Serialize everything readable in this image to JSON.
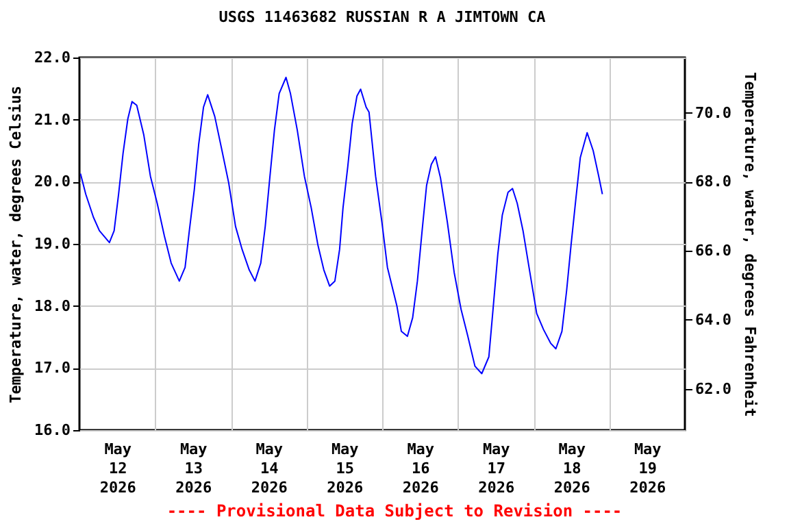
{
  "chart_data": {
    "type": "line",
    "title": "USGS 11463682 RUSSIAN R A JIMTOWN CA",
    "ylabel": "Temperature, water, degrees Celsius",
    "y2label": "Temperature, water, degrees Fahrenheit",
    "annotations": [
      "---- Provisional Data Subject to Revision ----"
    ],
    "x": [
      "2026-05-12T00:20",
      "2026-05-12T02:00",
      "2026-05-12T04:25",
      "2026-05-12T06:20",
      "2026-05-12T09:30",
      "2026-05-12T11:00",
      "2026-05-12T12:25",
      "2026-05-12T13:50",
      "2026-05-12T15:20",
      "2026-05-12T16:40",
      "2026-05-12T18:10",
      "2026-05-12T20:25",
      "2026-05-12T22:30",
      "2026-05-13T00:40",
      "2026-05-13T02:55",
      "2026-05-13T05:05",
      "2026-05-13T07:40",
      "2026-05-13T09:30",
      "2026-05-13T10:55",
      "2026-05-13T12:25",
      "2026-05-13T13:50",
      "2026-05-13T15:20",
      "2026-05-13T16:40",
      "2026-05-13T18:55",
      "2026-05-13T21:05",
      "2026-05-13T23:20",
      "2026-05-14T01:30",
      "2026-05-14T03:35",
      "2026-05-14T05:50",
      "2026-05-14T07:40",
      "2026-05-14T09:30",
      "2026-05-14T10:55",
      "2026-05-14T12:25",
      "2026-05-14T13:50",
      "2026-05-14T15:20",
      "2026-05-14T17:30",
      "2026-05-14T18:55",
      "2026-05-14T21:05",
      "2026-05-14T23:20",
      "2026-05-15T01:30",
      "2026-05-15T03:35",
      "2026-05-15T05:30",
      "2026-05-15T07:20",
      "2026-05-15T09:00",
      "2026-05-15T10:30",
      "2026-05-15T11:35",
      "2026-05-15T13:05",
      "2026-05-15T14:30",
      "2026-05-15T16:00",
      "2026-05-15T17:10",
      "2026-05-15T18:55",
      "2026-05-15T19:50",
      "2026-05-15T21:55",
      "2026-05-15T23:55",
      "2026-05-16T01:40",
      "2026-05-16T04:40",
      "2026-05-16T06:05",
      "2026-05-16T08:00",
      "2026-05-16T09:40",
      "2026-05-16T11:10",
      "2026-05-16T12:40",
      "2026-05-16T14:05",
      "2026-05-16T15:35",
      "2026-05-16T16:55",
      "2026-05-16T18:30",
      "2026-05-16T20:40",
      "2026-05-16T22:50",
      "2026-05-17T01:00",
      "2026-05-17T03:10",
      "2026-05-17T05:25",
      "2026-05-17T07:35",
      "2026-05-17T09:50",
      "2026-05-17T11:10",
      "2026-05-17T12:40",
      "2026-05-17T14:05",
      "2026-05-17T15:55",
      "2026-05-17T17:20",
      "2026-05-17T18:50",
      "2026-05-17T20:40",
      "2026-05-17T22:50",
      "2026-05-18T01:00",
      "2026-05-18T03:10",
      "2026-05-18T05:25",
      "2026-05-18T07:05",
      "2026-05-18T09:00",
      "2026-05-18T10:30",
      "2026-05-18T11:55",
      "2026-05-18T13:25",
      "2026-05-18T14:50",
      "2026-05-18T17:00",
      "2026-05-18T18:55",
      "2026-05-18T20:40",
      "2026-05-18T21:50"
    ],
    "series": [
      {
        "color": "#0000ff",
        "values": [
          20.13,
          19.8,
          19.43,
          19.21,
          19.02,
          19.21,
          19.8,
          20.46,
          21.01,
          21.29,
          21.23,
          20.75,
          20.09,
          19.65,
          19.13,
          18.69,
          18.4,
          18.62,
          19.24,
          19.87,
          20.61,
          21.2,
          21.4,
          21.05,
          20.53,
          19.98,
          19.28,
          18.91,
          18.58,
          18.4,
          18.69,
          19.28,
          20.09,
          20.83,
          21.42,
          21.68,
          21.42,
          20.83,
          20.09,
          19.58,
          18.99,
          18.58,
          18.32,
          18.4,
          18.91,
          19.58,
          20.24,
          20.94,
          21.38,
          21.49,
          21.2,
          21.12,
          20.09,
          19.35,
          18.62,
          18.0,
          17.59,
          17.51,
          17.81,
          18.4,
          19.21,
          19.94,
          20.28,
          20.4,
          20.06,
          19.35,
          18.54,
          17.95,
          17.51,
          17.03,
          16.91,
          17.18,
          17.95,
          18.83,
          19.46,
          19.83,
          19.89,
          19.65,
          19.21,
          18.54,
          17.88,
          17.62,
          17.4,
          17.31,
          17.59,
          18.25,
          18.99,
          19.72,
          20.39,
          20.79,
          20.5,
          20.09,
          19.8
        ]
      }
    ],
    "xlim": [
      "2026-05-12",
      "2026-05-20"
    ],
    "xticks": [
      {
        "value": "2026-05-12T12:00",
        "label": "May\n12\n2026"
      },
      {
        "value": "2026-05-13",
        "label": null
      },
      {
        "value": "2026-05-13T12:00",
        "label": "May\n13\n2026"
      },
      {
        "value": "2026-05-14",
        "label": null
      },
      {
        "value": "2026-05-14T12:00",
        "label": "May\n14\n2026"
      },
      {
        "value": "2026-05-15",
        "label": null
      },
      {
        "value": "2026-05-15T12:00",
        "label": "May\n15\n2026"
      },
      {
        "value": "2026-05-16",
        "label": null
      },
      {
        "value": "2026-05-16T12:00",
        "label": "May\n16\n2026"
      },
      {
        "value": "2026-05-17",
        "label": null
      },
      {
        "value": "2026-05-17T12:00",
        "label": "May\n17\n2026"
      },
      {
        "value": "2026-05-18",
        "label": null
      },
      {
        "value": "2026-05-18T12:00",
        "label": "May\n18\n2026"
      },
      {
        "value": "2026-05-19",
        "label": null
      },
      {
        "value": "2026-05-19T12:00",
        "label": "May\n19\n2026"
      }
    ],
    "ylim": [
      16,
      22
    ],
    "yticks": [
      {
        "value": 16,
        "label": "16.0"
      },
      {
        "value": 17,
        "label": "17.0"
      },
      {
        "value": 18,
        "label": "18.0"
      },
      {
        "value": 19,
        "label": "19.0"
      },
      {
        "value": 20,
        "label": "20.0"
      },
      {
        "value": 21,
        "label": "21.0"
      },
      {
        "value": 22,
        "label": "22.0"
      }
    ],
    "y2lim": [
      60.8,
      71.6
    ],
    "y2ticks": [
      {
        "value": 62,
        "label": "62.0"
      },
      {
        "value": 64,
        "label": "64.0"
      },
      {
        "value": 66,
        "label": "66.0"
      },
      {
        "value": 68,
        "label": "68.0"
      },
      {
        "value": 70,
        "label": "70.0"
      }
    ],
    "grid": true
  }
}
